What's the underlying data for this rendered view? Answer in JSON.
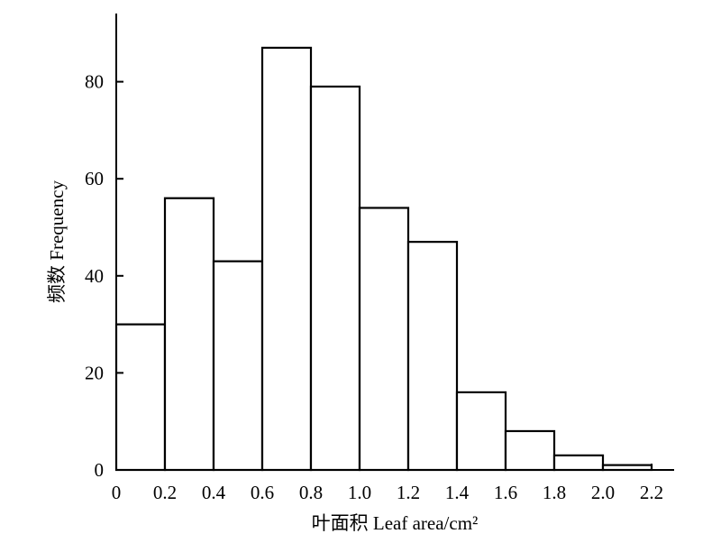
{
  "chart_data": {
    "type": "bar",
    "bins": [
      {
        "x0": 0.0,
        "x1": 0.2,
        "value": 30
      },
      {
        "x0": 0.2,
        "x1": 0.4,
        "value": 56
      },
      {
        "x0": 0.4,
        "x1": 0.6,
        "value": 43
      },
      {
        "x0": 0.6,
        "x1": 0.8,
        "value": 87
      },
      {
        "x0": 0.8,
        "x1": 1.0,
        "value": 79
      },
      {
        "x0": 1.0,
        "x1": 1.2,
        "value": 54
      },
      {
        "x0": 1.2,
        "x1": 1.4,
        "value": 47
      },
      {
        "x0": 1.4,
        "x1": 1.6,
        "value": 16
      },
      {
        "x0": 1.6,
        "x1": 1.8,
        "value": 8
      },
      {
        "x0": 1.8,
        "x1": 2.0,
        "value": 3
      },
      {
        "x0": 2.0,
        "x1": 2.2,
        "value": 1
      }
    ],
    "xlabel": "叶面积 Leaf area/cm²",
    "ylabel": "频数 Frequency",
    "xticks": [
      "0",
      "0.2",
      "0.4",
      "0.6",
      "0.8",
      "1.0",
      "1.2",
      "1.4",
      "1.6",
      "1.8",
      "2.0",
      "2.2"
    ],
    "xtick_values": [
      0,
      0.2,
      0.4,
      0.6,
      0.8,
      1.0,
      1.2,
      1.4,
      1.6,
      1.8,
      2.0,
      2.2
    ],
    "yticks": [
      "0",
      "20",
      "40",
      "60",
      "80"
    ],
    "ytick_values": [
      0,
      20,
      40,
      60,
      80
    ],
    "xlim": [
      0,
      2.3
    ],
    "ylim": [
      0,
      95
    ],
    "grid": false,
    "colors": {
      "bar_fill": "#ffffff",
      "bar_edge": "#000000",
      "axis": "#000000"
    }
  }
}
